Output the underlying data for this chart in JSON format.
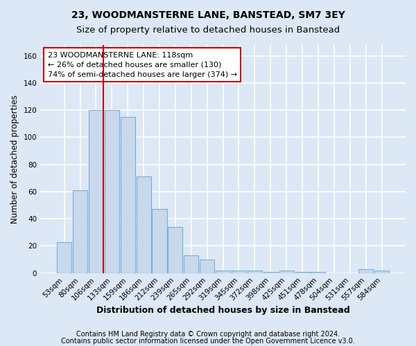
{
  "title_line1": "23, WOODMANSTERNE LANE, BANSTEAD, SM7 3EY",
  "title_line2": "Size of property relative to detached houses in Banstead",
  "xlabel": "Distribution of detached houses by size in Banstead",
  "ylabel": "Number of detached properties",
  "bar_color": "#c8d8ed",
  "bar_edge_color": "#7aafd4",
  "categories": [
    "53sqm",
    "80sqm",
    "106sqm",
    "133sqm",
    "159sqm",
    "186sqm",
    "212sqm",
    "239sqm",
    "265sqm",
    "292sqm",
    "319sqm",
    "345sqm",
    "372sqm",
    "398sqm",
    "425sqm",
    "451sqm",
    "478sqm",
    "504sqm",
    "531sqm",
    "557sqm",
    "584sqm"
  ],
  "values": [
    23,
    61,
    120,
    120,
    115,
    71,
    47,
    34,
    13,
    10,
    2,
    2,
    2,
    1,
    2,
    1,
    1,
    0,
    0,
    3,
    2
  ],
  "ylim": [
    0,
    168
  ],
  "yticks": [
    0,
    20,
    40,
    60,
    80,
    100,
    120,
    140,
    160
  ],
  "vline_x_index": 2,
  "vline_color": "#cc0000",
  "annotation_text": "23 WOODMANSTERNE LANE: 118sqm\n← 26% of detached houses are smaller (130)\n74% of semi-detached houses are larger (374) →",
  "annotation_box_color": "#ffffff",
  "annotation_edge_color": "#cc0000",
  "footnote1": "Contains HM Land Registry data © Crown copyright and database right 2024.",
  "footnote2": "Contains public sector information licensed under the Open Government Licence v3.0.",
  "background_color": "#dce8f5",
  "plot_background_color": "#dce8f5",
  "grid_color": "#ffffff",
  "title1_fontsize": 10,
  "title2_fontsize": 9.5,
  "xlabel_fontsize": 9,
  "ylabel_fontsize": 8.5,
  "tick_fontsize": 7.5,
  "annotation_fontsize": 8,
  "footnote_fontsize": 7
}
